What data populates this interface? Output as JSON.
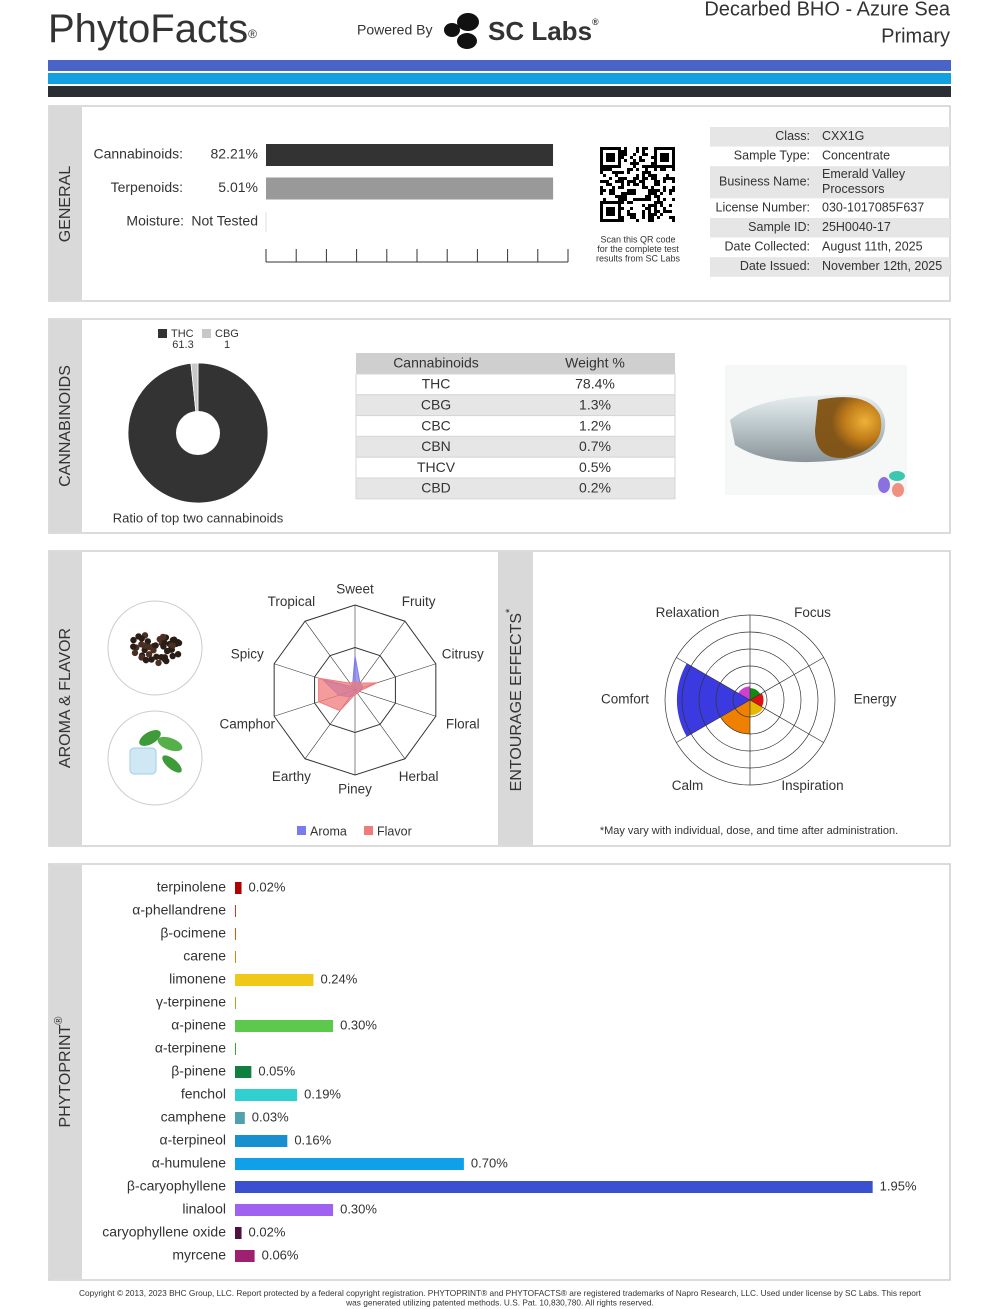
{
  "header": {
    "logo": "PhytoFacts",
    "logo_mark": "®",
    "powered_by": "Powered By",
    "lab": "SC Labs",
    "lab_mark": "®",
    "product": "Decarbed BHO - Azure Sea",
    "category": "Primary"
  },
  "general": {
    "title": "GENERAL",
    "rows": [
      {
        "label": "Cannabinoids:",
        "value": 82.21,
        "value_label": "82.21%",
        "color": "#333333",
        "xlim": [
          0,
          86.5
        ]
      },
      {
        "label": "Terpenoids:",
        "value": 5.01,
        "value_label": "5.01%",
        "color": "#999999",
        "xlim": [
          0,
          5.27
        ]
      },
      {
        "label": "Moisture:",
        "value_label": "Not Tested"
      }
    ],
    "qr_note": [
      "Scan this QR code",
      "for the complete test",
      "results from SC Labs"
    ],
    "info": [
      {
        "key": "Class:",
        "value": [
          "CXX1G"
        ]
      },
      {
        "key": "Sample Type:",
        "value": [
          "Concentrate"
        ]
      },
      {
        "key": "Business Name:",
        "value": [
          "Emerald Valley",
          "Processors"
        ]
      },
      {
        "key": "License Number:",
        "value": [
          "030-1017085F637"
        ]
      },
      {
        "key": "Sample ID:",
        "value": [
          "25H0040-17"
        ]
      },
      {
        "key": "Date Collected:",
        "value": [
          "August 11th, 2025"
        ]
      },
      {
        "key": "Date Issued:",
        "value": [
          "November 12th, 2025"
        ]
      }
    ]
  },
  "cannabinoids": {
    "title": "CANNABINOIDS",
    "table": {
      "header": [
        "Cannabinoids",
        "Weight %"
      ],
      "rows": [
        [
          "THC",
          "78.4%"
        ],
        [
          "CBG",
          "1.3%"
        ],
        [
          "CBC",
          "1.2%"
        ],
        [
          "CBN",
          "0.7%"
        ],
        [
          "THCV",
          "0.5%"
        ],
        [
          "CBD",
          "0.2%"
        ]
      ]
    }
  },
  "chart_data": [
    {
      "type": "pie",
      "caption": "Ratio of top two cannabinoids",
      "categories": [
        "THC",
        "CBG"
      ],
      "values": [
        61.3,
        1.0
      ],
      "colors": [
        "#333333",
        "#c8c8c8"
      ]
    },
    {
      "type": "radar",
      "title": "AROMA & FLAVOR",
      "categories": [
        "Sweet",
        "Fruity",
        "Citrusy",
        "Floral",
        "Herbal",
        "Piney",
        "Earthy",
        "Camphor",
        "Spicy",
        "Tropical"
      ],
      "series": [
        {
          "name": "Aroma",
          "color": "#7b7bf0",
          "values": [
            4,
            1,
            1,
            0.5,
            0.5,
            0.5,
            1,
            2,
            4,
            0.5
          ]
        },
        {
          "name": "Flavor",
          "color": "#f07b7b",
          "values": [
            1,
            1,
            2.7,
            0.5,
            0.5,
            0.5,
            3,
            4.5,
            4.5,
            1
          ]
        }
      ],
      "ylim": [
        0,
        10
      ]
    },
    {
      "type": "polar",
      "title": "ENTOURAGE EFFECTS",
      "title_mark": "*",
      "categories": [
        "Focus",
        "Energy",
        "Inspiration",
        "Calm",
        "Comfort",
        "Relaxation"
      ],
      "colors": [
        "#108a10",
        "#e01010",
        "#e8b800",
        "#f08000",
        "#3a3ae0",
        "#d040d0"
      ],
      "values": [
        0.7,
        0.8,
        0.9,
        2,
        4.3,
        0.8
      ],
      "ylim": [
        0,
        5
      ],
      "note": "*May vary with individual, dose, and time after administration."
    },
    {
      "type": "bar",
      "orientation": "horizontal",
      "title": "PHYTOPRINT",
      "title_mark": "®",
      "categories": [
        "terpinolene",
        "α-phellandrene",
        "β-ocimene",
        "carene",
        "limonene",
        "γ-terpinene",
        "α-pinene",
        "α-terpinene",
        "β-pinene",
        "fenchol",
        "camphene",
        "α-terpineol",
        "α-humulene",
        "β-caryophyllene",
        "linalool",
        "caryophyllene oxide",
        "myrcene"
      ],
      "colors": [
        "#b00000",
        "#d83020",
        "#e05000",
        "#e08000",
        "#f0c818",
        "#90b020",
        "#5cc84c",
        "#30a030",
        "#108040",
        "#30d0d0",
        "#50a0b0",
        "#1890d0",
        "#10a0e8",
        "#3a50d0",
        "#a060f0",
        "#501040",
        "#a02070"
      ],
      "values": [
        0.02,
        0.003,
        0.003,
        0.003,
        0.24,
        0.003,
        0.3,
        0.003,
        0.05,
        0.19,
        0.03,
        0.16,
        0.7,
        1.95,
        0.3,
        0.02,
        0.06
      ],
      "value_labels": [
        "0.02%",
        null,
        null,
        null,
        "0.24%",
        null,
        "0.30%",
        null,
        "0.05%",
        "0.19%",
        "0.03%",
        "0.16%",
        "0.70%",
        "1.95%",
        "0.30%",
        "0.02%",
        "0.06%"
      ],
      "xlim": [
        0,
        2
      ]
    }
  ],
  "footer": {
    "lines": [
      "Copyright © 2013, 2023 BHC Group, LLC. Report protected by a federal copyright registration. PHYTOPRINT® and PHYTOFACTS® are registered trademarks of Napro Research, LLC. Used under license by SC Labs. This report",
      "was generated utilizing patented methods. U.S. Pat. 10,830,780. All rights reserved."
    ]
  }
}
